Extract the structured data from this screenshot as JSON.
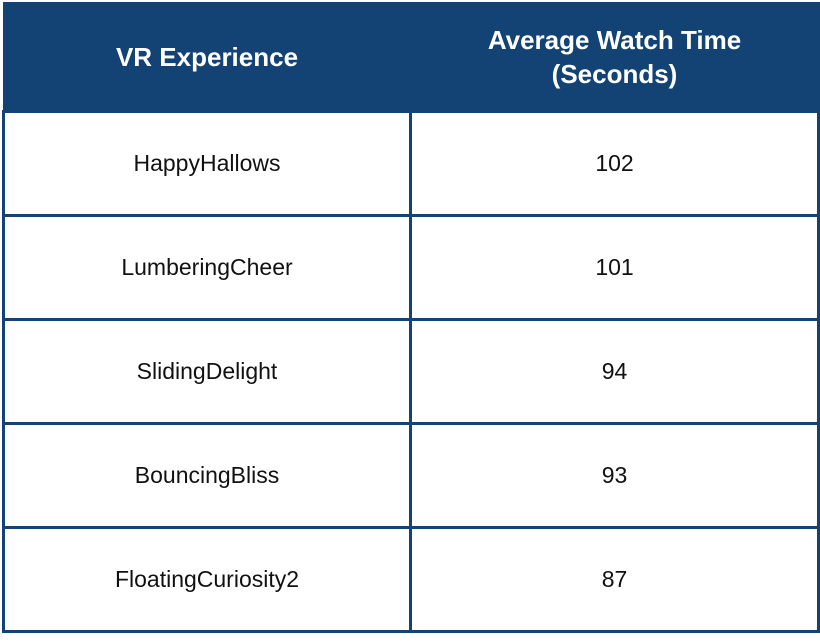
{
  "chart_data": {
    "type": "table",
    "columns": [
      "VR Experience",
      "Average Watch Time (Seconds)"
    ],
    "rows": [
      {
        "name": "HappyHallows",
        "value": 102
      },
      {
        "name": "LumberingCheer",
        "value": 101
      },
      {
        "name": "SlidingDelight",
        "value": 94
      },
      {
        "name": "BouncingBliss",
        "value": 93
      },
      {
        "name": "FloatingCuriosity2",
        "value": 87
      }
    ]
  },
  "colors": {
    "header_background": "#134274",
    "header_text": "#ffffff",
    "cell_border": "#134274"
  }
}
